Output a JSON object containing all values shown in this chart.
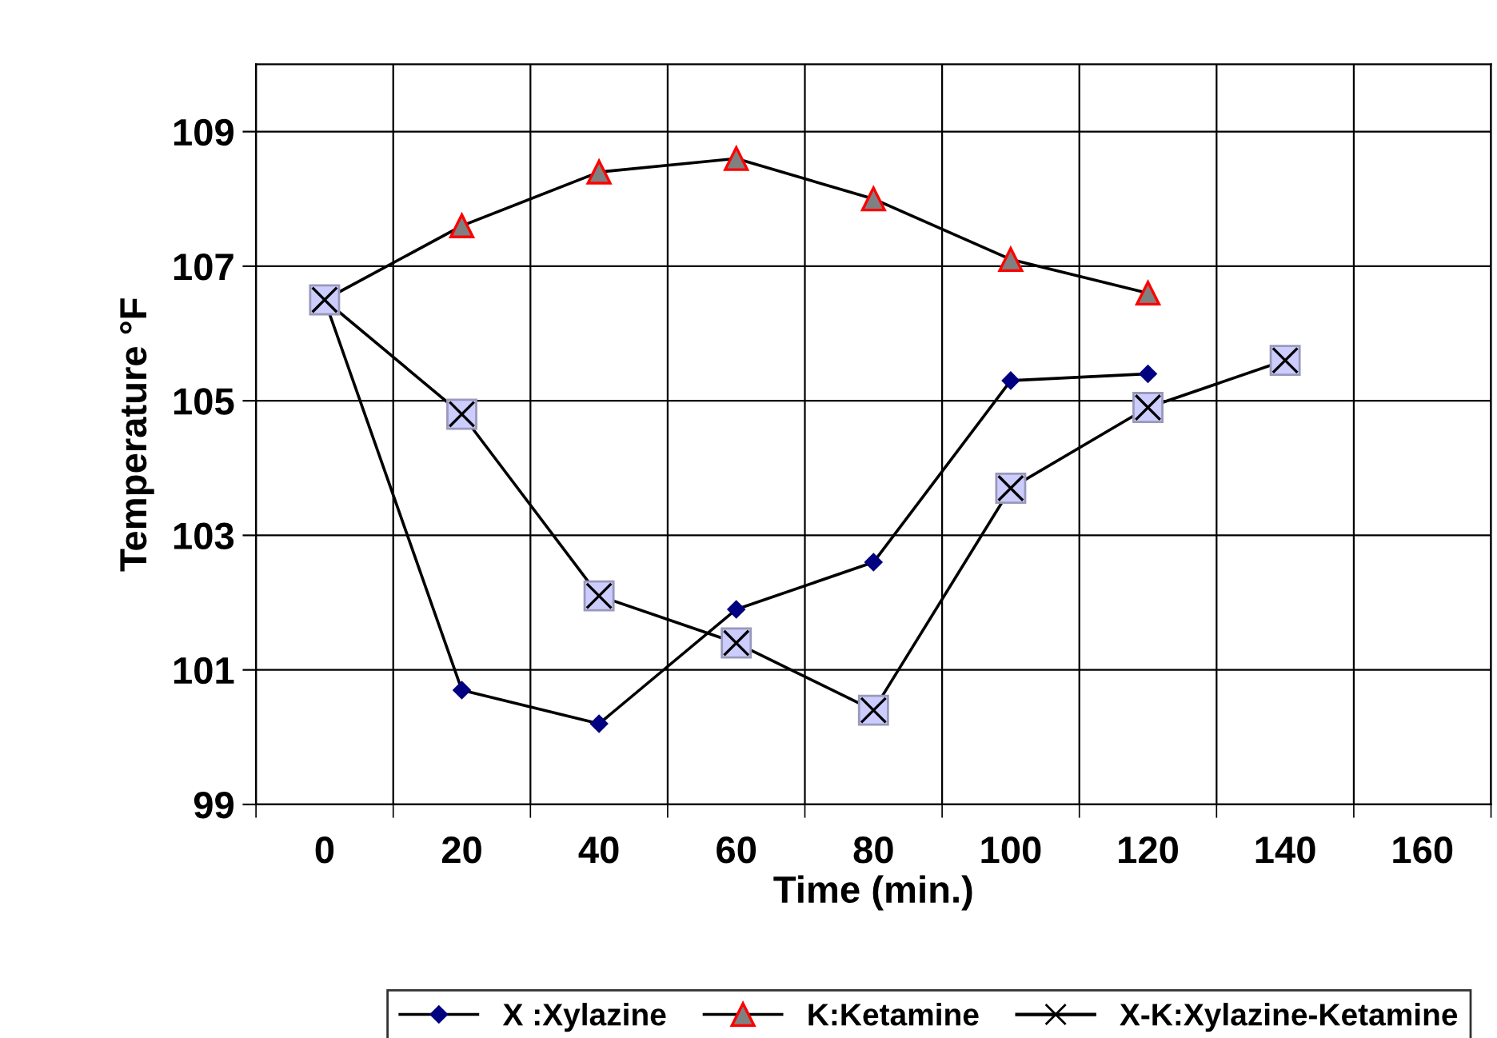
{
  "chart_data": {
    "type": "line",
    "xlabel": "Time (min.)",
    "ylabel": "Temperature °F",
    "categories": [
      "0",
      "20",
      "40",
      "60",
      "80",
      "100",
      "120",
      "140",
      "160"
    ],
    "series": [
      {
        "name": "X :Xylazine",
        "color": "#000080",
        "marker": "diamond",
        "values": [
          106.5,
          100.7,
          100.2,
          101.9,
          102.6,
          105.3,
          105.4,
          null,
          null
        ]
      },
      {
        "name": "K:Ketamine",
        "color": "#808080",
        "marker": "triangle",
        "values": [
          106.5,
          107.6,
          108.4,
          108.6,
          108.0,
          107.1,
          106.6,
          null,
          null
        ]
      },
      {
        "name": "X-K:Xylazine-Ketamine",
        "color": "#ccccff",
        "marker": "square",
        "values": [
          106.5,
          104.8,
          102.1,
          101.4,
          100.4,
          103.7,
          104.9,
          105.6,
          null
        ]
      }
    ],
    "ylim": [
      99,
      110
    ],
    "yticks": [
      99,
      101,
      103,
      105,
      107,
      109
    ],
    "grid": true,
    "legend": "bottom",
    "line_style": "solid"
  }
}
